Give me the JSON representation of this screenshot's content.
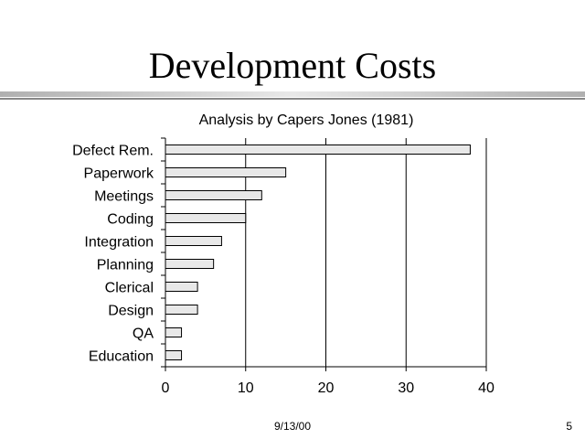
{
  "slide": {
    "title": "Development Costs",
    "date": "9/13/00",
    "page": "5"
  },
  "chart_data": {
    "type": "bar",
    "orientation": "horizontal",
    "title": "Analysis by Capers Jones (1981)",
    "categories": [
      "Defect Rem.",
      "Paperwork",
      "Meetings",
      "Coding",
      "Integration",
      "Planning",
      "Clerical",
      "Design",
      "QA",
      "Education"
    ],
    "values": [
      38,
      15,
      12,
      10,
      7,
      6,
      4,
      4,
      2,
      2
    ],
    "xlim": [
      0,
      40
    ],
    "xticks": [
      "0",
      "10",
      "20",
      "30",
      "40"
    ],
    "grid": true,
    "bar_color": "#e8e8e8"
  }
}
